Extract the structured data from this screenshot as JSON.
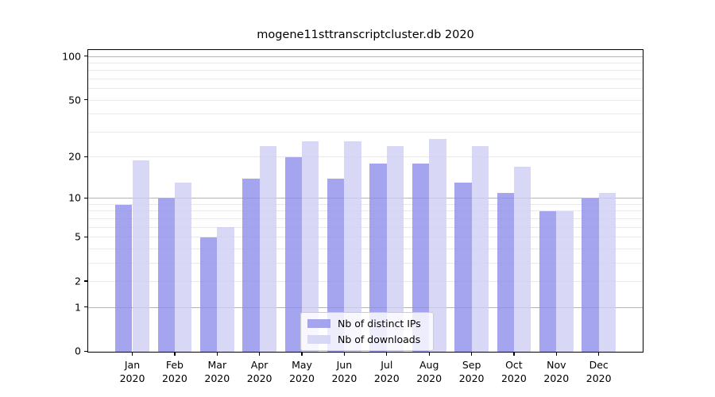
{
  "chart_data": {
    "type": "bar",
    "title": "mogene11sttranscriptcluster.db 2020",
    "categories": [
      "Jan 2020",
      "Feb 2020",
      "Mar 2020",
      "Apr 2020",
      "May 2020",
      "Jun 2020",
      "Jul 2020",
      "Aug 2020",
      "Sep 2020",
      "Oct 2020",
      "Nov 2020",
      "Dec 2020"
    ],
    "series": [
      {
        "name": "Nb of distinct IPs",
        "color": "#8f8feb",
        "alpha": 0.8,
        "values": [
          9,
          10,
          5,
          14,
          20,
          14,
          18,
          18,
          13,
          11,
          8,
          10
        ]
      },
      {
        "name": "Nb of downloads",
        "color": "#cecef4",
        "alpha": 0.8,
        "values": [
          19,
          13,
          6,
          24,
          26,
          26,
          24,
          27,
          24,
          17,
          8,
          11
        ]
      }
    ],
    "xlabel": "",
    "ylabel": "",
    "yscale": "log10(1+v)",
    "ylim": [
      0,
      100
    ],
    "y_ticks": [
      0,
      1,
      2,
      5,
      10,
      20,
      50,
      100
    ],
    "y_tick_labels": [
      "0",
      "1",
      "2",
      "5",
      "10",
      "20",
      "50",
      "100"
    ],
    "y_major_gridlines": [
      1,
      10,
      100
    ],
    "y_minor_gridlines": [
      2,
      3,
      4,
      5,
      6,
      7,
      8,
      9,
      20,
      30,
      40,
      50,
      60,
      70,
      80,
      90
    ],
    "grid": true,
    "legend_position": "lower center",
    "colors": {
      "major_grid": "#b4b4b4",
      "minor_grid": "#e9e9e9",
      "axis": "#000000",
      "text": "#000000",
      "background": "#ffffff"
    }
  }
}
